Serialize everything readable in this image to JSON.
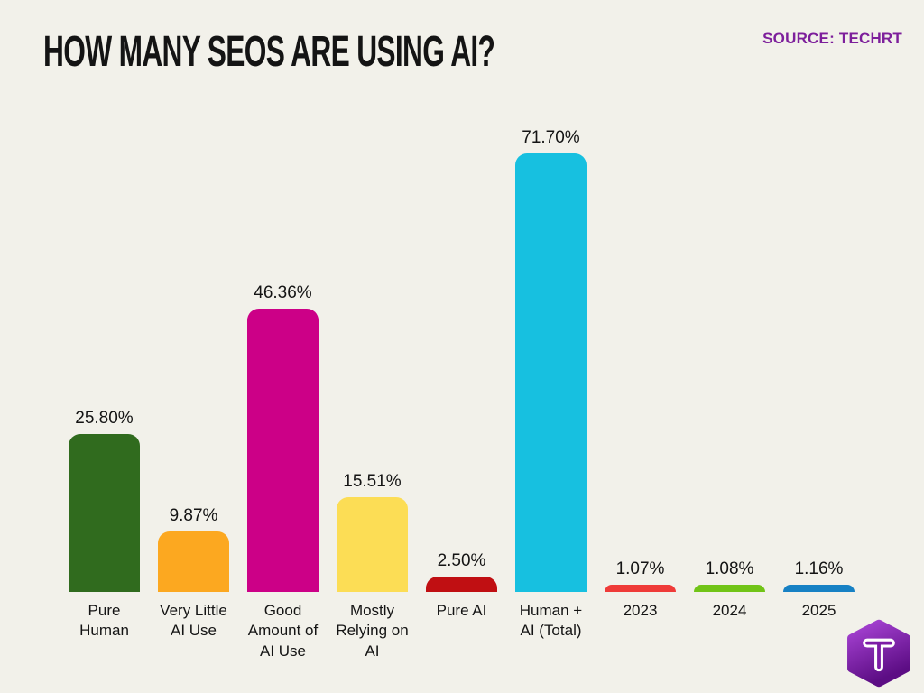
{
  "page": {
    "background": "#f2f1ea"
  },
  "header": {
    "title": "HOW MANY SEOS ARE USING AI?",
    "title_color": "#141414",
    "source_label": "SOURCE: TECHRT",
    "source_color": "#7d1f9b"
  },
  "chart_data": {
    "type": "bar",
    "title": "HOW MANY SEOS ARE USING AI?",
    "categories": [
      "Pure Human",
      "Very Little AI Use",
      "Good Amount of AI Use",
      "Mostly Relying on AI",
      "Pure AI",
      "Human + AI (Total)",
      "2023",
      "2024",
      "2025"
    ],
    "values": [
      25.8,
      9.87,
      46.36,
      15.51,
      2.5,
      71.7,
      1.07,
      1.08,
      1.16
    ],
    "value_labels": [
      "25.80%",
      "9.87%",
      "46.36%",
      "15.51%",
      "2.50%",
      "71.70%",
      "1.07%",
      "1.08%",
      "1.16%"
    ],
    "bar_colors": [
      "#306b1e",
      "#fca820",
      "#cc0087",
      "#fcdd55",
      "#c00f12",
      "#17c0e0",
      "#ef3b38",
      "#71c417",
      "#1781c4"
    ],
    "xlabel": "",
    "ylabel": "",
    "ylim": [
      0,
      75
    ],
    "grid": false,
    "legend": false,
    "value_label_position": "above-bar",
    "background": "#f2f1ea"
  },
  "logo": {
    "icon": "hexagon-letter-t",
    "letter": "T",
    "gradient_top": "#a944d6",
    "gradient_bottom": "#5c0d84"
  }
}
